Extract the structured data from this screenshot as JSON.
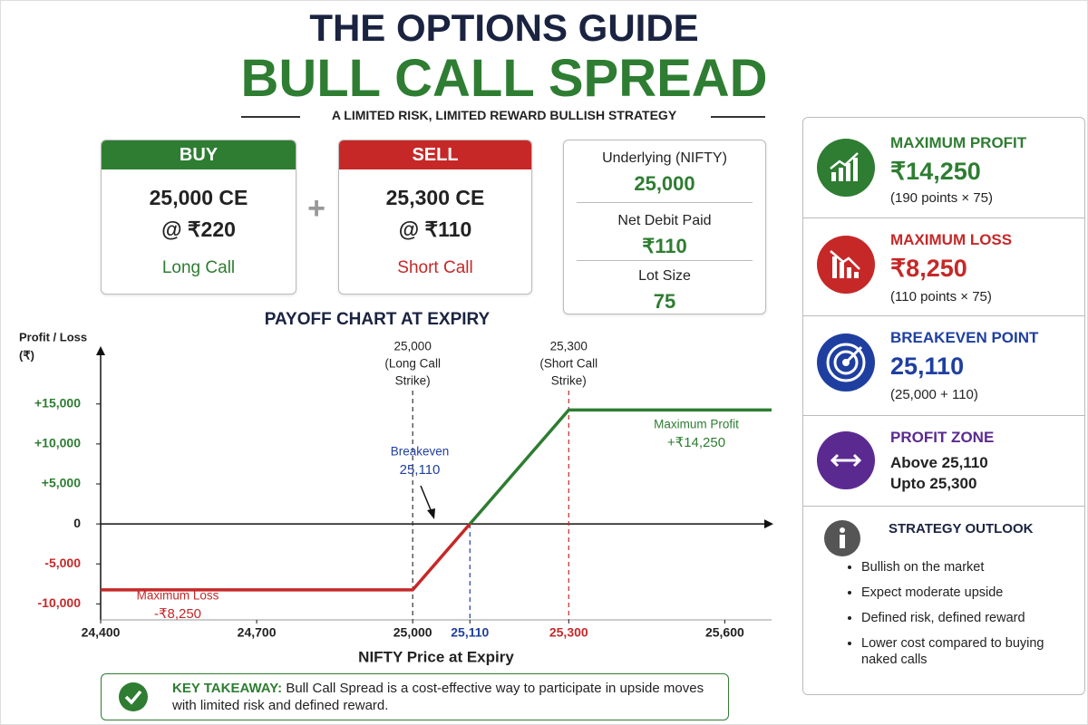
{
  "header": {
    "title": "THE OPTIONS GUIDE",
    "subtitle": "BULL CALL SPREAD",
    "tagline": "A LIMITED RISK, LIMITED REWARD BULLISH STRATEGY"
  },
  "legs": [
    {
      "side": "BUY",
      "strike": "25,000 CE",
      "price": "@ ₹220",
      "label": "Long Call"
    },
    {
      "side": "SELL",
      "strike": "25,300 CE",
      "price": "@ ₹110",
      "label": "Short Call"
    }
  ],
  "operator": "+",
  "details": [
    {
      "label": "Underlying (NIFTY)",
      "value": "25,000"
    },
    {
      "label": "Net Debit Paid",
      "value": "₹110"
    },
    {
      "label": "Lot Size",
      "value": "75"
    }
  ],
  "summary": [
    {
      "title": "MAXIMUM PROFIT",
      "value": "₹14,250",
      "note": "(190 points × 75)"
    },
    {
      "title": "MAXIMUM LOSS",
      "value": "₹8,250",
      "note": "(110 points × 75)"
    },
    {
      "title": "BREAKEVEN POINT",
      "value": "25,110",
      "note": "(25,000 + 110)"
    },
    {
      "title": "PROFIT ZONE",
      "lines": [
        "Above 25,110",
        "Upto 25,300"
      ]
    }
  ],
  "outlook": {
    "title": "STRATEGY OUTLOOK",
    "items": [
      "Bullish on the market",
      "Expect moderate upside",
      "Defined risk, defined reward",
      "Lower cost compared to buying naked calls"
    ]
  },
  "takeaway": {
    "label": "KEY TAKEAWAY:",
    "text": "Bull Call Spread is a cost-effective way to participate in upside moves with limited risk and defined reward."
  },
  "chart_data": {
    "type": "line",
    "title": "PAYOFF CHART AT EXPIRY",
    "ylabel": [
      "Profit / Loss",
      "(₹)"
    ],
    "xlabel": "NIFTY Price at Expiry",
    "x": [
      24400,
      25000,
      25110,
      25300,
      25690
    ],
    "series": [
      {
        "color": "#2e7d32",
        "negative_color": "#c62828",
        "values": [
          -8250,
          -8250,
          0,
          14250,
          14250
        ]
      }
    ],
    "xlim": [
      24400,
      25690
    ],
    "ylim": [
      -12000,
      22000
    ],
    "xticks": [
      {
        "value": 24400,
        "label": "24,400"
      },
      {
        "value": 24700,
        "label": "24,700"
      },
      {
        "value": 25000,
        "label": "25,000"
      },
      {
        "value": 25110,
        "label": "25,110",
        "color": "#1f3fa0"
      },
      {
        "value": 25300,
        "label": "25,300",
        "color": "#c62828"
      },
      {
        "value": 25600,
        "label": "25,600"
      }
    ],
    "yticks": [
      {
        "value": -10000,
        "label": "-10,000"
      },
      {
        "value": -5000,
        "label": "-5,000"
      },
      0,
      {
        "value": 5000,
        "label": "+5,000"
      },
      {
        "value": 10000,
        "label": "+10,000"
      },
      {
        "value": 15000,
        "label": "+15,000"
      }
    ],
    "tick_colors": {
      "positive": "#2e7d32",
      "negative": "#c62828",
      "zero": "#222222"
    },
    "vlines": [
      {
        "x": 25000,
        "color": "#333333",
        "label": [
          "25,000",
          "(Long Call",
          "Strike)"
        ]
      },
      {
        "x": 25110,
        "color": "#1f3fa0"
      },
      {
        "x": 25300,
        "color": "#c62828",
        "label": [
          "25,300",
          "(Short Call",
          "Strike)"
        ]
      }
    ],
    "annotations": [
      {
        "text": [
          "Breakeven",
          "25,110"
        ],
        "color": "#1f3fa0"
      },
      {
        "text": [
          "Maximum Profit",
          "+₹14,250"
        ],
        "color": "#2e7d32"
      },
      {
        "text": [
          "Maximum Loss",
          "-₹8,250"
        ],
        "color": "#c62828"
      }
    ]
  }
}
